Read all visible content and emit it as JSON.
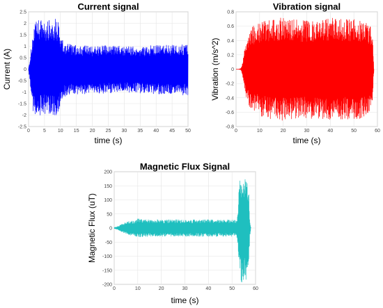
{
  "chart_data": [
    {
      "type": "line",
      "title": "Current signal",
      "xlabel": "time (s)",
      "ylabel": "Current (A)",
      "xlim": [
        0,
        50
      ],
      "ylim": [
        -2.5,
        2.5
      ],
      "xticks": [
        0,
        5,
        10,
        15,
        20,
        25,
        30,
        35,
        40,
        45,
        50
      ],
      "yticks": [
        -2.5,
        -2,
        -1.5,
        -1,
        -0.5,
        0,
        0.5,
        1,
        1.5,
        2,
        2.5
      ],
      "grid": true,
      "color": "#0000ff",
      "envelope": {
        "time": [
          0,
          0.5,
          1,
          1.5,
          2,
          2.5,
          3,
          4,
          5,
          6,
          7,
          8,
          9,
          9.5,
          10,
          10.5,
          11,
          12,
          13,
          15,
          20,
          25,
          30,
          35,
          40,
          45,
          50
        ],
        "upper": [
          0.05,
          0.5,
          1.2,
          1.7,
          2.0,
          2.1,
          2.15,
          2.2,
          2.2,
          2.15,
          2.2,
          2.25,
          2.2,
          2.1,
          1.6,
          1.3,
          1.2,
          1.15,
          1.1,
          1.05,
          1.0,
          1.05,
          1.0,
          1.0,
          1.05,
          1.05,
          1.1
        ],
        "lower": [
          -0.05,
          -0.6,
          -1.4,
          -1.9,
          -2.1,
          -2.15,
          -2.1,
          -2.0,
          -2.0,
          -1.95,
          -2.0,
          -2.0,
          -2.0,
          -1.9,
          -1.6,
          -1.35,
          -1.25,
          -1.2,
          -1.15,
          -1.1,
          -1.1,
          -1.05,
          -1.0,
          -1.05,
          -1.1,
          -1.1,
          -1.15
        ]
      }
    },
    {
      "type": "line",
      "title": "Vibration signal",
      "xlabel": "time (s)",
      "ylabel": "Vibration (m/s^2)",
      "xlim": [
        0,
        60
      ],
      "ylim": [
        -0.8,
        0.8
      ],
      "xticks": [
        0,
        10,
        20,
        30,
        40,
        50,
        60
      ],
      "yticks": [
        -0.8,
        -0.6,
        -0.4,
        -0.2,
        0,
        0.2,
        0.4,
        0.6,
        0.8
      ],
      "grid": true,
      "color": "#ff0000",
      "envelope": {
        "time": [
          0,
          1,
          2,
          2.5,
          3,
          4,
          5,
          6,
          8,
          10,
          15,
          20,
          25,
          30,
          35,
          40,
          45,
          50,
          55,
          56,
          57,
          58,
          58.5
        ],
        "upper": [
          0.0,
          0.0,
          0.01,
          0.05,
          0.15,
          0.35,
          0.5,
          0.58,
          0.62,
          0.65,
          0.7,
          0.72,
          0.7,
          0.68,
          0.7,
          0.72,
          0.7,
          0.7,
          0.68,
          0.65,
          0.6,
          0.4,
          0.0
        ],
        "lower": [
          0.0,
          0.0,
          -0.01,
          -0.05,
          -0.15,
          -0.35,
          -0.5,
          -0.55,
          -0.6,
          -0.65,
          -0.7,
          -0.72,
          -0.7,
          -0.68,
          -0.7,
          -0.72,
          -0.7,
          -0.7,
          -0.68,
          -0.65,
          -0.6,
          -0.4,
          0.0
        ]
      }
    },
    {
      "type": "line",
      "title": "Magnetic Flux Signal",
      "xlabel": "time (s)",
      "ylabel": "Magnetic Flux (uT)",
      "xlim": [
        0,
        60
      ],
      "ylim": [
        -200,
        200
      ],
      "xticks": [
        0,
        10,
        20,
        30,
        40,
        50,
        60
      ],
      "yticks": [
        -200,
        -150,
        -100,
        -50,
        0,
        50,
        100,
        150,
        200
      ],
      "grid": true,
      "color": "#1fbfbf",
      "envelope": {
        "time": [
          0,
          1,
          2,
          3,
          4,
          6,
          8,
          9,
          10,
          11,
          15,
          20,
          30,
          40,
          50,
          52,
          52.5,
          53,
          53.5,
          54,
          55,
          56,
          57,
          57.5,
          58
        ],
        "upper": [
          2,
          4,
          8,
          14,
          18,
          24,
          27,
          30,
          33,
          32,
          30,
          30,
          30,
          30,
          30,
          31,
          60,
          150,
          185,
          195,
          190,
          185,
          170,
          40,
          0
        ],
        "lower": [
          -2,
          -4,
          -8,
          -14,
          -18,
          -24,
          -27,
          -30,
          -33,
          -32,
          -30,
          -30,
          -30,
          -30,
          -30,
          -31,
          -60,
          -150,
          -185,
          -195,
          -190,
          -185,
          -170,
          -40,
          0
        ]
      }
    }
  ]
}
